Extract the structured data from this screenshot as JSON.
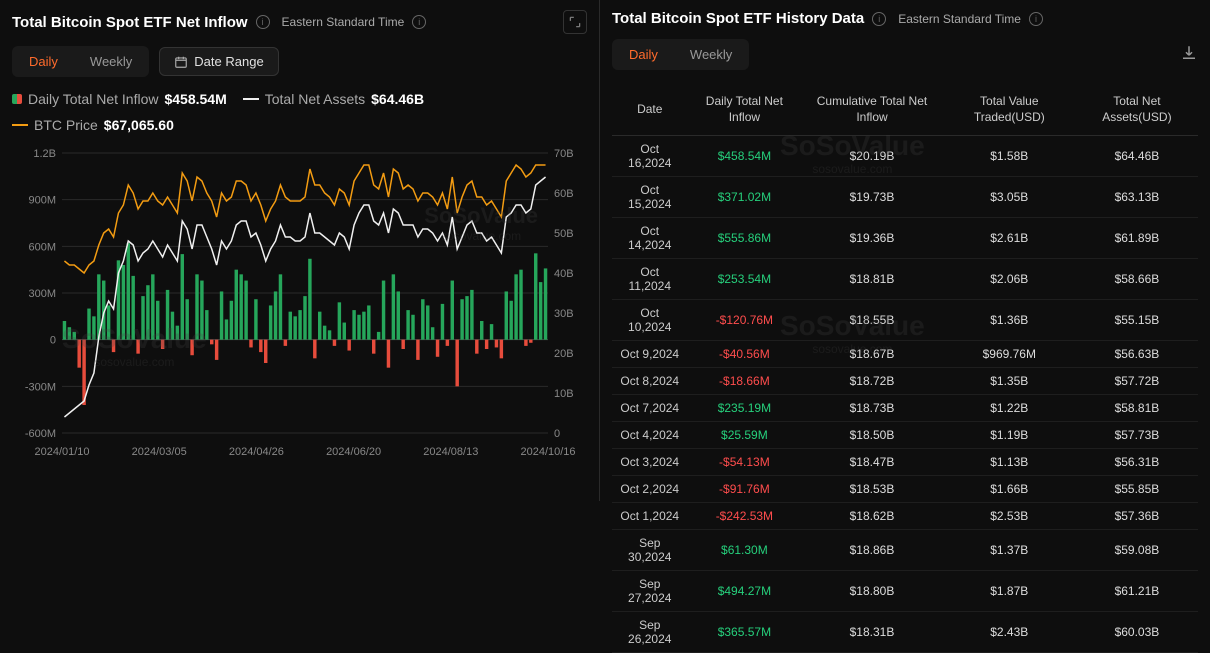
{
  "left": {
    "title": "Total Bitcoin Spot ETF Net Inflow",
    "timezone": "Eastern Standard Time",
    "tabs": {
      "daily": "Daily",
      "weekly": "Weekly",
      "active": "daily"
    },
    "date_range_label": "Date Range",
    "legend": {
      "inflow_label": "Daily Total Net Inflow",
      "inflow_value": "$458.54M",
      "assets_label": "Total Net Assets",
      "assets_value": "$64.46B",
      "btc_label": "BTC Price",
      "btc_value": "$67,065.60"
    },
    "chart": {
      "bg": "#0e0e0e",
      "grid_color": "#2a2a2a",
      "pos_color": "#26a65b",
      "neg_color": "#e74c3c",
      "assets_line_color": "#f0f0f0",
      "btc_line_color": "#f39c12",
      "left_axis": {
        "min": -600,
        "max": 1200,
        "ticks": [
          -600,
          -300,
          0,
          300,
          600,
          900,
          1200
        ],
        "labels": [
          "-600M",
          "-300M",
          "0",
          "300M",
          "600M",
          "900M",
          "1.2B"
        ]
      },
      "right_axis": {
        "min": 0,
        "max": 70,
        "ticks": [
          0,
          10,
          20,
          30,
          40,
          50,
          60,
          70
        ],
        "labels": [
          "0",
          "10B",
          "20B",
          "30B",
          "40B",
          "50B",
          "60B",
          "70B"
        ]
      },
      "x_labels": [
        "2024/01/10",
        "2024/03/05",
        "2024/04/26",
        "2024/06/20",
        "2024/08/13",
        "2024/10/16"
      ],
      "bars": [
        120,
        80,
        50,
        -180,
        -420,
        200,
        150,
        420,
        380,
        220,
        -80,
        510,
        480,
        620,
        410,
        -90,
        280,
        350,
        420,
        250,
        -60,
        320,
        180,
        90,
        550,
        260,
        -100,
        420,
        380,
        190,
        -30,
        -130,
        310,
        130,
        250,
        450,
        420,
        380,
        -50,
        260,
        -80,
        -150,
        220,
        310,
        420,
        -40,
        180,
        150,
        190,
        280,
        520,
        -120,
        180,
        90,
        60,
        -40,
        240,
        110,
        -70,
        190,
        160,
        180,
        220,
        -90,
        50,
        380,
        -180,
        420,
        310,
        -60,
        190,
        160,
        -130,
        260,
        220,
        80,
        -110,
        230,
        -40,
        380,
        -300,
        260,
        280,
        320,
        -90,
        120,
        -60,
        100,
        -50,
        -120,
        310,
        250,
        420,
        450,
        -40,
        -20,
        555,
        370,
        458
      ],
      "assets": [
        4,
        5,
        6,
        7,
        8,
        12,
        15,
        24,
        30,
        33,
        31,
        40,
        43,
        48,
        47,
        43,
        45,
        46,
        48,
        46,
        44,
        47,
        45,
        43,
        53,
        51,
        46,
        52,
        52,
        49,
        46,
        42,
        48,
        46,
        48,
        52,
        53,
        53,
        49,
        50,
        47,
        43,
        46,
        48,
        52,
        49,
        49,
        48,
        48,
        49,
        55,
        50,
        50,
        49,
        48,
        47,
        50,
        49,
        46,
        52,
        55,
        57,
        57,
        53,
        52,
        55,
        50,
        56,
        55,
        52,
        52,
        52,
        49,
        51,
        51,
        50,
        48,
        50,
        47,
        54,
        46,
        49,
        52,
        53,
        50,
        50,
        48,
        49,
        47,
        45,
        54,
        55,
        57,
        57,
        55,
        56,
        62,
        63,
        64
      ],
      "btc": [
        43,
        42,
        42,
        41,
        40,
        42,
        43,
        47,
        50,
        51,
        49,
        55,
        57,
        62,
        60,
        56,
        58,
        58,
        60,
        58,
        57,
        59,
        57,
        55,
        65,
        63,
        58,
        64,
        63,
        60,
        58,
        54,
        60,
        58,
        59,
        63,
        63,
        62,
        58,
        60,
        57,
        53,
        56,
        58,
        62,
        59,
        58,
        58,
        58,
        59,
        66,
        62,
        62,
        60,
        59,
        57,
        61,
        60,
        57,
        63,
        65,
        67,
        67,
        62,
        61,
        65,
        59,
        66,
        65,
        61,
        62,
        61,
        58,
        60,
        60,
        59,
        57,
        60,
        56,
        64,
        55,
        59,
        62,
        63,
        59,
        59,
        57,
        58,
        56,
        54,
        63,
        65,
        67,
        66,
        64,
        65,
        67,
        67,
        67
      ]
    },
    "watermark": {
      "main": "SoSoValue",
      "sub": "sosovalue.com"
    }
  },
  "right": {
    "title": "Total Bitcoin Spot ETF History Data",
    "timezone": "Eastern Standard Time",
    "tabs": {
      "daily": "Daily",
      "weekly": "Weekly",
      "active": "daily"
    },
    "columns": [
      "Date",
      "Daily Total Net Inflow",
      "Cumulative Total Net Inflow",
      "Total Value Traded(USD)",
      "Total Net Assets(USD)"
    ],
    "rows": [
      {
        "date": "Oct 16,2024",
        "inflow": "$458.54M",
        "dir": "pos",
        "cum": "$20.19B",
        "vol": "$1.58B",
        "assets": "$64.46B"
      },
      {
        "date": "Oct 15,2024",
        "inflow": "$371.02M",
        "dir": "pos",
        "cum": "$19.73B",
        "vol": "$3.05B",
        "assets": "$63.13B"
      },
      {
        "date": "Oct 14,2024",
        "inflow": "$555.86M",
        "dir": "pos",
        "cum": "$19.36B",
        "vol": "$2.61B",
        "assets": "$61.89B"
      },
      {
        "date": "Oct 11,2024",
        "inflow": "$253.54M",
        "dir": "pos",
        "cum": "$18.81B",
        "vol": "$2.06B",
        "assets": "$58.66B"
      },
      {
        "date": "Oct 10,2024",
        "inflow": "-$120.76M",
        "dir": "neg",
        "cum": "$18.55B",
        "vol": "$1.36B",
        "assets": "$55.15B"
      },
      {
        "date": "Oct 9,2024",
        "inflow": "-$40.56M",
        "dir": "neg",
        "cum": "$18.67B",
        "vol": "$969.76M",
        "assets": "$56.63B"
      },
      {
        "date": "Oct 8,2024",
        "inflow": "-$18.66M",
        "dir": "neg",
        "cum": "$18.72B",
        "vol": "$1.35B",
        "assets": "$57.72B"
      },
      {
        "date": "Oct 7,2024",
        "inflow": "$235.19M",
        "dir": "pos",
        "cum": "$18.73B",
        "vol": "$1.22B",
        "assets": "$58.81B"
      },
      {
        "date": "Oct 4,2024",
        "inflow": "$25.59M",
        "dir": "pos",
        "cum": "$18.50B",
        "vol": "$1.19B",
        "assets": "$57.73B"
      },
      {
        "date": "Oct 3,2024",
        "inflow": "-$54.13M",
        "dir": "neg",
        "cum": "$18.47B",
        "vol": "$1.13B",
        "assets": "$56.31B"
      },
      {
        "date": "Oct 2,2024",
        "inflow": "-$91.76M",
        "dir": "neg",
        "cum": "$18.53B",
        "vol": "$1.66B",
        "assets": "$55.85B"
      },
      {
        "date": "Oct 1,2024",
        "inflow": "-$242.53M",
        "dir": "neg",
        "cum": "$18.62B",
        "vol": "$2.53B",
        "assets": "$57.36B"
      },
      {
        "date": "Sep 30,2024",
        "inflow": "$61.30M",
        "dir": "pos",
        "cum": "$18.86B",
        "vol": "$1.37B",
        "assets": "$59.08B"
      },
      {
        "date": "Sep 27,2024",
        "inflow": "$494.27M",
        "dir": "pos",
        "cum": "$18.80B",
        "vol": "$1.87B",
        "assets": "$61.21B"
      },
      {
        "date": "Sep 26,2024",
        "inflow": "$365.57M",
        "dir": "pos",
        "cum": "$18.31B",
        "vol": "$2.43B",
        "assets": "$60.03B"
      }
    ],
    "watermark": {
      "main": "SoSoValue",
      "sub": "sosovalue.com"
    }
  }
}
